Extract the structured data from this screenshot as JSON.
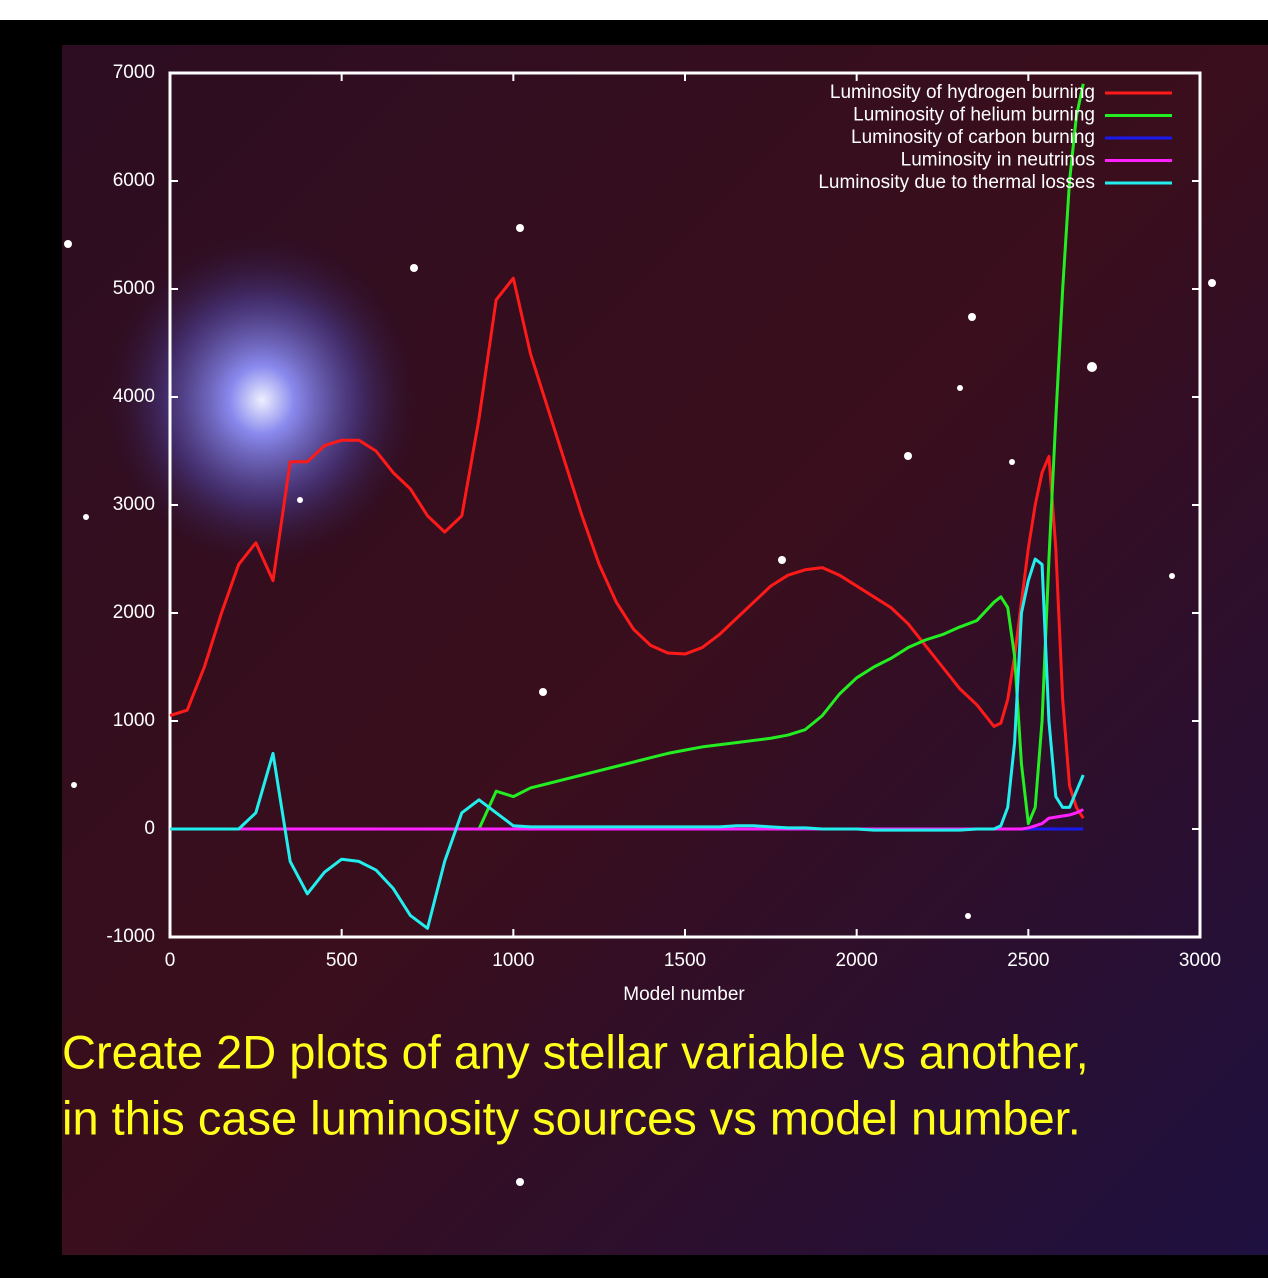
{
  "chart_data": {
    "type": "line",
    "xlabel": "Model number",
    "xlim": [
      0,
      3000
    ],
    "xticks": [
      0,
      500,
      1000,
      1500,
      2000,
      2500,
      3000
    ],
    "ylim": [
      -1000,
      7000
    ],
    "yticks": [
      -1000,
      0,
      1000,
      2000,
      3000,
      4000,
      5000,
      6000,
      7000
    ],
    "legend": "top-right",
    "x": [
      0,
      50,
      100,
      150,
      200,
      250,
      300,
      350,
      400,
      450,
      500,
      550,
      600,
      650,
      700,
      750,
      800,
      850,
      900,
      950,
      1000,
      1050,
      1100,
      1150,
      1200,
      1250,
      1300,
      1350,
      1400,
      1450,
      1500,
      1550,
      1600,
      1650,
      1700,
      1750,
      1800,
      1850,
      1900,
      1950,
      2000,
      2050,
      2100,
      2150,
      2200,
      2250,
      2300,
      2350,
      2400,
      2420,
      2440,
      2460,
      2480,
      2500,
      2520,
      2540,
      2560,
      2580,
      2600,
      2620,
      2640,
      2660
    ],
    "series": [
      {
        "name": "Luminosity of hydrogen burning",
        "color": "#ff1a1a",
        "values": [
          1050,
          1100,
          1500,
          2000,
          2450,
          2650,
          2300,
          3400,
          3400,
          3550,
          3600,
          3600,
          3500,
          3300,
          3150,
          2900,
          2750,
          2900,
          3800,
          4900,
          5100,
          4400,
          3900,
          3400,
          2900,
          2450,
          2100,
          1850,
          1700,
          1630,
          1620,
          1680,
          1800,
          1950,
          2100,
          2250,
          2350,
          2400,
          2420,
          2350,
          2250,
          2150,
          2050,
          1900,
          1700,
          1500,
          1300,
          1150,
          950,
          980,
          1200,
          1600,
          2100,
          2600,
          3000,
          3300,
          3450,
          2600,
          1200,
          400,
          200,
          100
        ]
      },
      {
        "name": "Luminosity of helium burning",
        "color": "#22ee22",
        "values": [
          0,
          0,
          0,
          0,
          0,
          0,
          0,
          0,
          0,
          0,
          0,
          0,
          0,
          0,
          0,
          0,
          0,
          0,
          0,
          350,
          300,
          380,
          420,
          460,
          500,
          540,
          580,
          620,
          660,
          700,
          730,
          760,
          780,
          800,
          820,
          840,
          870,
          920,
          1050,
          1250,
          1400,
          1500,
          1580,
          1680,
          1750,
          1800,
          1870,
          1930,
          2100,
          2150,
          2050,
          1600,
          600,
          50,
          200,
          1000,
          2500,
          3800,
          5000,
          6000,
          6600,
          6900
        ]
      },
      {
        "name": "Luminosity of carbon burning",
        "color": "#1a1aee",
        "values": [
          0,
          0,
          0,
          0,
          0,
          0,
          0,
          0,
          0,
          0,
          0,
          0,
          0,
          0,
          0,
          0,
          0,
          0,
          0,
          0,
          0,
          0,
          0,
          0,
          0,
          0,
          0,
          0,
          0,
          0,
          0,
          0,
          0,
          0,
          0,
          0,
          0,
          0,
          0,
          0,
          0,
          0,
          0,
          0,
          0,
          0,
          0,
          0,
          0,
          0,
          0,
          0,
          0,
          0,
          0,
          0,
          0,
          0,
          0,
          0,
          0,
          0
        ]
      },
      {
        "name": "Luminosity in neutrinos",
        "color": "#ff22ff",
        "values": [
          0,
          0,
          0,
          0,
          0,
          0,
          0,
          0,
          0,
          0,
          0,
          0,
          0,
          0,
          0,
          0,
          0,
          0,
          0,
          0,
          0,
          0,
          0,
          0,
          0,
          0,
          0,
          0,
          0,
          0,
          0,
          0,
          0,
          0,
          0,
          0,
          0,
          0,
          0,
          0,
          0,
          0,
          0,
          0,
          0,
          0,
          0,
          0,
          0,
          0,
          0,
          0,
          0,
          10,
          30,
          50,
          100,
          110,
          120,
          130,
          150,
          180
        ]
      },
      {
        "name": "Luminosity due to thermal losses",
        "color": "#22eeee",
        "values": [
          0,
          0,
          0,
          0,
          0,
          150,
          700,
          -300,
          -600,
          -400,
          -280,
          -300,
          -380,
          -550,
          -800,
          -920,
          -300,
          150,
          270,
          150,
          30,
          20,
          20,
          20,
          20,
          20,
          20,
          20,
          20,
          20,
          20,
          20,
          20,
          30,
          30,
          20,
          10,
          10,
          0,
          0,
          0,
          -10,
          -10,
          -10,
          -10,
          -10,
          -10,
          0,
          0,
          30,
          200,
          800,
          2000,
          2300,
          2500,
          2450,
          1000,
          300,
          200,
          200,
          350,
          500
        ]
      }
    ],
    "annotations": [
      "Create 2D plots of any stellar variable vs another,",
      "in this case luminosity sources vs model number."
    ]
  }
}
